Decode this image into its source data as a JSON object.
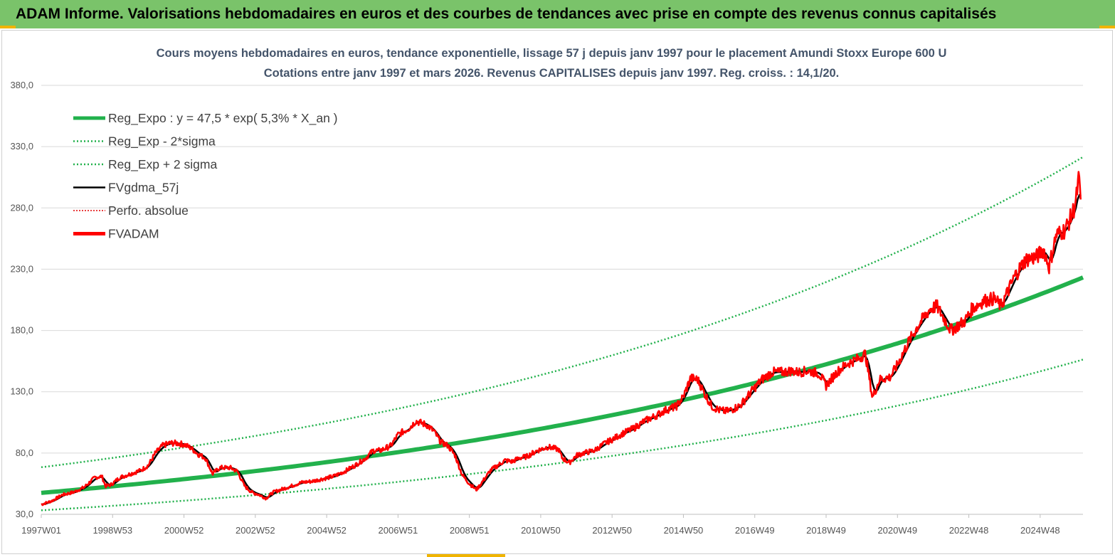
{
  "header": {
    "title": "ADAM Informe. Valorisations hebdomadaires en euros et des courbes de tendances avec prise en compte des revenus connus capitalisés"
  },
  "colors": {
    "banner": "#7ac36a",
    "accent": "#f0b400",
    "reg_expo": "#22b14c",
    "sigma": "#22b14c",
    "gdma": "#000000",
    "perfo": "#e00000",
    "adam": "#ff0000",
    "title_text": "#44546a"
  },
  "chart_data": {
    "type": "line",
    "title": [
      "Cours moyens hebdomadaires en euros, tendance exponentielle, lissage 57 j depuis janv 1997  pour le placement Amundi Stoxx Europe 600 U",
      "Cotations entre janv 1997 et mars 2026. Revenus CAPITALISES  depuis janv 1997. Reg. croiss. : 14,1/20."
    ],
    "xlabel": "",
    "ylabel": "",
    "x_range": [
      1997.0,
      2026.2
    ],
    "ylim": [
      30,
      380
    ],
    "y_ticks": [
      30,
      80,
      130,
      180,
      230,
      280,
      330,
      380
    ],
    "y_tick_labels": [
      "30,0",
      "80,0",
      "130,0",
      "180,0",
      "230,0",
      "280,0",
      "330,0",
      "380,0"
    ],
    "x_ticks": [
      {
        "x": 1997.0,
        "label": "1997W01"
      },
      {
        "x": 1999.0,
        "label": "1998W53"
      },
      {
        "x": 2001.0,
        "label": "2000W52"
      },
      {
        "x": 2003.0,
        "label": "2002W52"
      },
      {
        "x": 2005.0,
        "label": "2004W52"
      },
      {
        "x": 2007.0,
        "label": "2006W51"
      },
      {
        "x": 2009.0,
        "label": "2008W51"
      },
      {
        "x": 2011.0,
        "label": "2010W50"
      },
      {
        "x": 2013.0,
        "label": "2012W50"
      },
      {
        "x": 2015.0,
        "label": "2014W50"
      },
      {
        "x": 2017.0,
        "label": "2016W49"
      },
      {
        "x": 2019.0,
        "label": "2018W49"
      },
      {
        "x": 2021.0,
        "label": "2020W49"
      },
      {
        "x": 2023.0,
        "label": "2022W48"
      },
      {
        "x": 2025.0,
        "label": "2024W48"
      }
    ],
    "grid": true,
    "legend_position": "top-left",
    "regression": {
      "a": 47.5,
      "rate": 0.053,
      "x0": 1997.0,
      "sigma_lower": 0.7,
      "sigma_upper": 1.44
    },
    "series": [
      {
        "name": "Reg_Expo : y = 47,5 * exp( 5,3% *  X_an )",
        "style": "thick-solid",
        "color_key": "reg_expo",
        "source": "regression"
      },
      {
        "name": "Reg_Exp - 2*sigma",
        "style": "dotted",
        "color_key": "sigma",
        "source": "lower"
      },
      {
        "name": "Reg_Exp + 2 sigma",
        "style": "dotted",
        "color_key": "sigma",
        "source": "upper"
      },
      {
        "name": "FVgdma_57j",
        "style": "solid",
        "color_key": "gdma",
        "source": "smooth"
      },
      {
        "name": "Perfo. absolue",
        "style": "dotted-thin",
        "color_key": "perfo",
        "source": "none"
      },
      {
        "name": "FVADAM",
        "style": "thick-solid",
        "color_key": "adam",
        "source": "actual"
      }
    ],
    "adam_points": [
      [
        1997.0,
        38
      ],
      [
        1997.3,
        41
      ],
      [
        1997.6,
        46
      ],
      [
        1997.9,
        48
      ],
      [
        1998.2,
        52
      ],
      [
        1998.5,
        60
      ],
      [
        1998.7,
        61
      ],
      [
        1998.8,
        53
      ],
      [
        1998.95,
        54
      ],
      [
        1999.2,
        60
      ],
      [
        1999.5,
        63
      ],
      [
        1999.8,
        66
      ],
      [
        2000.0,
        70
      ],
      [
        2000.2,
        80
      ],
      [
        2000.4,
        86
      ],
      [
        2000.6,
        88
      ],
      [
        2000.8,
        88
      ],
      [
        2001.0,
        87
      ],
      [
        2001.2,
        84
      ],
      [
        2001.4,
        79
      ],
      [
        2001.6,
        76
      ],
      [
        2001.8,
        63
      ],
      [
        2002.0,
        68
      ],
      [
        2002.3,
        68
      ],
      [
        2002.5,
        65
      ],
      [
        2002.7,
        53
      ],
      [
        2002.9,
        48
      ],
      [
        2003.1,
        46
      ],
      [
        2003.3,
        43
      ],
      [
        2003.5,
        48
      ],
      [
        2003.8,
        51
      ],
      [
        2004.0,
        53
      ],
      [
        2004.3,
        56
      ],
      [
        2004.6,
        57
      ],
      [
        2004.9,
        59
      ],
      [
        2005.2,
        61
      ],
      [
        2005.5,
        65
      ],
      [
        2005.8,
        70
      ],
      [
        2006.1,
        76
      ],
      [
        2006.3,
        82
      ],
      [
        2006.5,
        82
      ],
      [
        2006.8,
        86
      ],
      [
        2007.0,
        95
      ],
      [
        2007.3,
        100
      ],
      [
        2007.5,
        106
      ],
      [
        2007.8,
        103
      ],
      [
        2008.0,
        98
      ],
      [
        2008.2,
        89
      ],
      [
        2008.4,
        86
      ],
      [
        2008.6,
        78
      ],
      [
        2008.8,
        62
      ],
      [
        2009.0,
        55
      ],
      [
        2009.2,
        50
      ],
      [
        2009.4,
        58
      ],
      [
        2009.6,
        66
      ],
      [
        2009.8,
        70
      ],
      [
        2010.0,
        74
      ],
      [
        2010.2,
        73
      ],
      [
        2010.4,
        76
      ],
      [
        2010.6,
        77
      ],
      [
        2010.9,
        82
      ],
      [
        2011.2,
        85
      ],
      [
        2011.5,
        83
      ],
      [
        2011.6,
        76
      ],
      [
        2011.8,
        72
      ],
      [
        2012.0,
        78
      ],
      [
        2012.2,
        80
      ],
      [
        2012.5,
        82
      ],
      [
        2012.8,
        88
      ],
      [
        2013.0,
        91
      ],
      [
        2013.3,
        96
      ],
      [
        2013.6,
        100
      ],
      [
        2013.9,
        106
      ],
      [
        2014.2,
        110
      ],
      [
        2014.5,
        115
      ],
      [
        2014.8,
        118
      ],
      [
        2015.0,
        126
      ],
      [
        2015.2,
        141
      ],
      [
        2015.4,
        140
      ],
      [
        2015.6,
        128
      ],
      [
        2015.8,
        118
      ],
      [
        2016.0,
        115
      ],
      [
        2016.2,
        114
      ],
      [
        2016.4,
        116
      ],
      [
        2016.6,
        119
      ],
      [
        2016.9,
        130
      ],
      [
        2017.2,
        140
      ],
      [
        2017.5,
        146
      ],
      [
        2017.8,
        146
      ],
      [
        2018.0,
        147
      ],
      [
        2018.2,
        146
      ],
      [
        2018.5,
        147
      ],
      [
        2018.8,
        145
      ],
      [
        2019.0,
        135
      ],
      [
        2019.3,
        146
      ],
      [
        2019.6,
        153
      ],
      [
        2019.9,
        157
      ],
      [
        2020.1,
        161
      ],
      [
        2020.3,
        125
      ],
      [
        2020.5,
        140
      ],
      [
        2020.8,
        142
      ],
      [
        2021.0,
        152
      ],
      [
        2021.3,
        170
      ],
      [
        2021.6,
        185
      ],
      [
        2021.9,
        197
      ],
      [
        2022.1,
        200
      ],
      [
        2022.3,
        190
      ],
      [
        2022.5,
        180
      ],
      [
        2022.7,
        184
      ],
      [
        2022.9,
        188
      ],
      [
        2023.1,
        198
      ],
      [
        2023.4,
        204
      ],
      [
        2023.7,
        206
      ],
      [
        2023.9,
        200
      ],
      [
        2024.1,
        212
      ],
      [
        2024.3,
        225
      ],
      [
        2024.6,
        238
      ],
      [
        2024.9,
        240
      ],
      [
        2025.1,
        246
      ],
      [
        2025.25,
        232
      ],
      [
        2025.45,
        258
      ],
      [
        2025.7,
        262
      ],
      [
        2025.9,
        275
      ],
      [
        2026.0,
        285
      ],
      [
        2026.08,
        304
      ],
      [
        2026.15,
        283
      ]
    ]
  }
}
